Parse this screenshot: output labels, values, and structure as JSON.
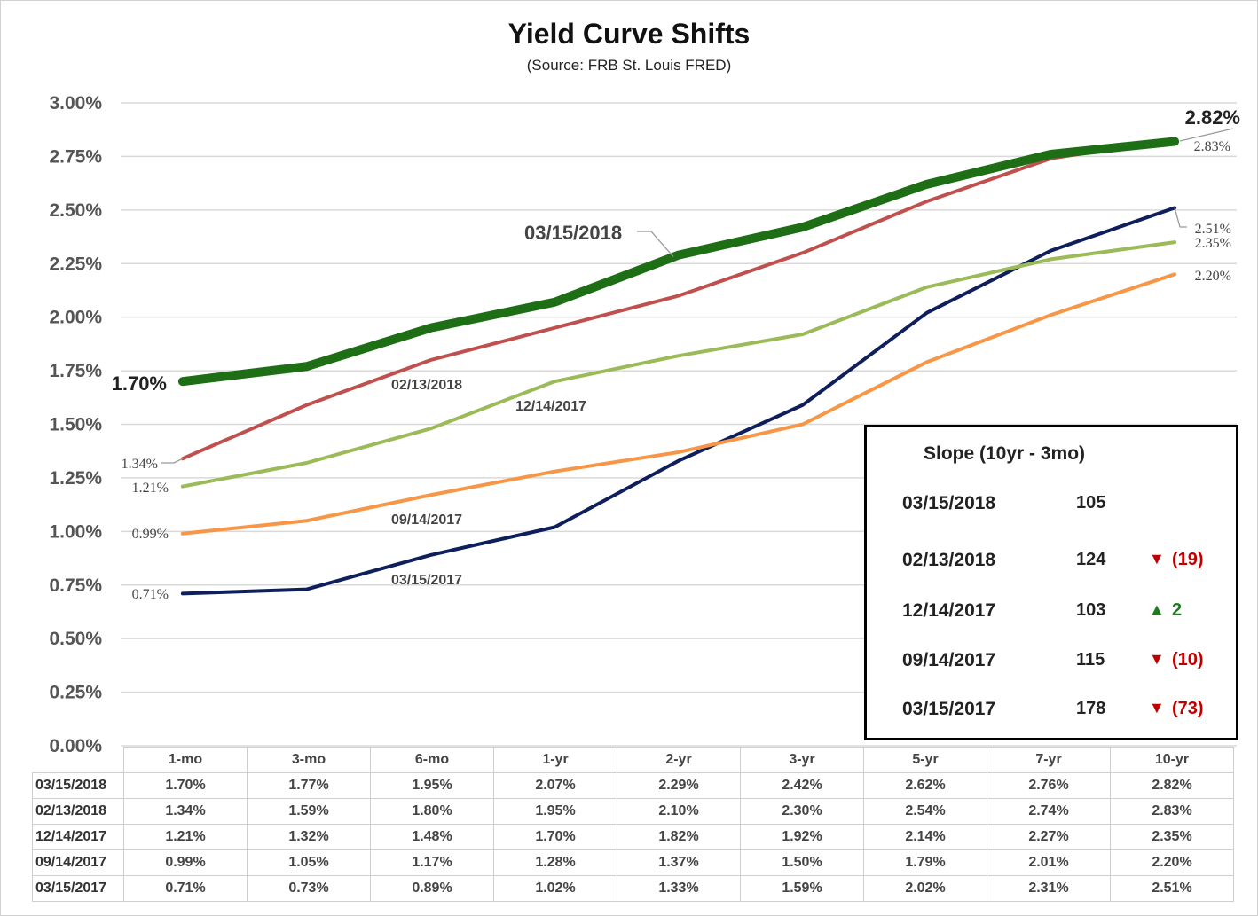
{
  "title": "Yield Curve Shifts",
  "subtitle": "(Source: FRB St. Louis FRED)",
  "chart_data": {
    "type": "line",
    "categories": [
      "1-mo",
      "3-mo",
      "6-mo",
      "1-yr",
      "2-yr",
      "3-yr",
      "5-yr",
      "7-yr",
      "10-yr"
    ],
    "ylim": [
      0,
      3.0
    ],
    "yticks": [
      "0.00%",
      "0.25%",
      "0.50%",
      "0.75%",
      "1.00%",
      "1.25%",
      "1.50%",
      "1.75%",
      "2.00%",
      "2.25%",
      "2.50%",
      "2.75%",
      "3.00%"
    ],
    "grid": true,
    "series": [
      {
        "name": "03/15/2018",
        "color": "#1e6e16",
        "values": [
          1.7,
          1.77,
          1.95,
          2.07,
          2.29,
          2.42,
          2.62,
          2.76,
          2.82
        ],
        "start_label": "1.70%",
        "end_label": "2.82%"
      },
      {
        "name": "02/13/2018",
        "color": "#c0504d",
        "values": [
          1.34,
          1.59,
          1.8,
          1.95,
          2.1,
          2.3,
          2.54,
          2.74,
          2.83
        ],
        "start_label": "1.34%",
        "end_label": "2.83%"
      },
      {
        "name": "12/14/2017",
        "color": "#9bbb59",
        "values": [
          1.21,
          1.32,
          1.48,
          1.7,
          1.82,
          1.92,
          2.14,
          2.27,
          2.35
        ],
        "start_label": "1.21%",
        "end_label": "2.35%"
      },
      {
        "name": "09/14/2017",
        "color": "#f79646",
        "values": [
          0.99,
          1.05,
          1.17,
          1.28,
          1.37,
          1.5,
          1.79,
          2.01,
          2.2
        ],
        "start_label": "0.99%",
        "end_label": "2.20%"
      },
      {
        "name": "03/15/2017",
        "color": "#0f1f5c",
        "values": [
          0.71,
          0.73,
          0.89,
          1.02,
          1.33,
          1.59,
          2.02,
          2.31,
          2.51
        ],
        "start_label": "0.71%",
        "end_label": "2.51%"
      }
    ]
  },
  "slope_box": {
    "title": "Slope (10yr - 3mo)",
    "rows": [
      {
        "date": "03/15/2018",
        "value": "105",
        "arrow": "",
        "change": "",
        "color": "#222222"
      },
      {
        "date": "02/13/2018",
        "value": "124",
        "arrow": "▼",
        "change": "(19)",
        "color": "#c00000"
      },
      {
        "date": "12/14/2017",
        "value": "103",
        "arrow": "▲",
        "change": "2",
        "color": "#1e7b1e"
      },
      {
        "date": "09/14/2017",
        "value": "115",
        "arrow": "▼",
        "change": "(10)",
        "color": "#c00000"
      },
      {
        "date": "03/15/2017",
        "value": "178",
        "arrow": "▼",
        "change": "(73)",
        "color": "#c00000"
      }
    ]
  },
  "table": {
    "headers": [
      "1-mo",
      "3-mo",
      "6-mo",
      "1-yr",
      "2-yr",
      "3-yr",
      "5-yr",
      "7-yr",
      "10-yr"
    ],
    "rows": [
      {
        "label": "03/15/2018",
        "cells": [
          "1.70%",
          "1.77%",
          "1.95%",
          "2.07%",
          "2.29%",
          "2.42%",
          "2.62%",
          "2.76%",
          "2.82%"
        ]
      },
      {
        "label": "02/13/2018",
        "cells": [
          "1.34%",
          "1.59%",
          "1.80%",
          "1.95%",
          "2.10%",
          "2.30%",
          "2.54%",
          "2.74%",
          "2.83%"
        ]
      },
      {
        "label": "12/14/2017",
        "cells": [
          "1.21%",
          "1.32%",
          "1.48%",
          "1.70%",
          "1.82%",
          "1.92%",
          "2.14%",
          "2.27%",
          "2.35%"
        ]
      },
      {
        "label": "09/14/2017",
        "cells": [
          "0.99%",
          "1.05%",
          "1.17%",
          "1.28%",
          "1.37%",
          "1.50%",
          "1.79%",
          "2.01%",
          "2.20%"
        ]
      },
      {
        "label": "03/15/2017",
        "cells": [
          "0.71%",
          "0.73%",
          "0.89%",
          "1.02%",
          "1.33%",
          "1.59%",
          "2.02%",
          "2.31%",
          "2.51%"
        ]
      }
    ]
  }
}
